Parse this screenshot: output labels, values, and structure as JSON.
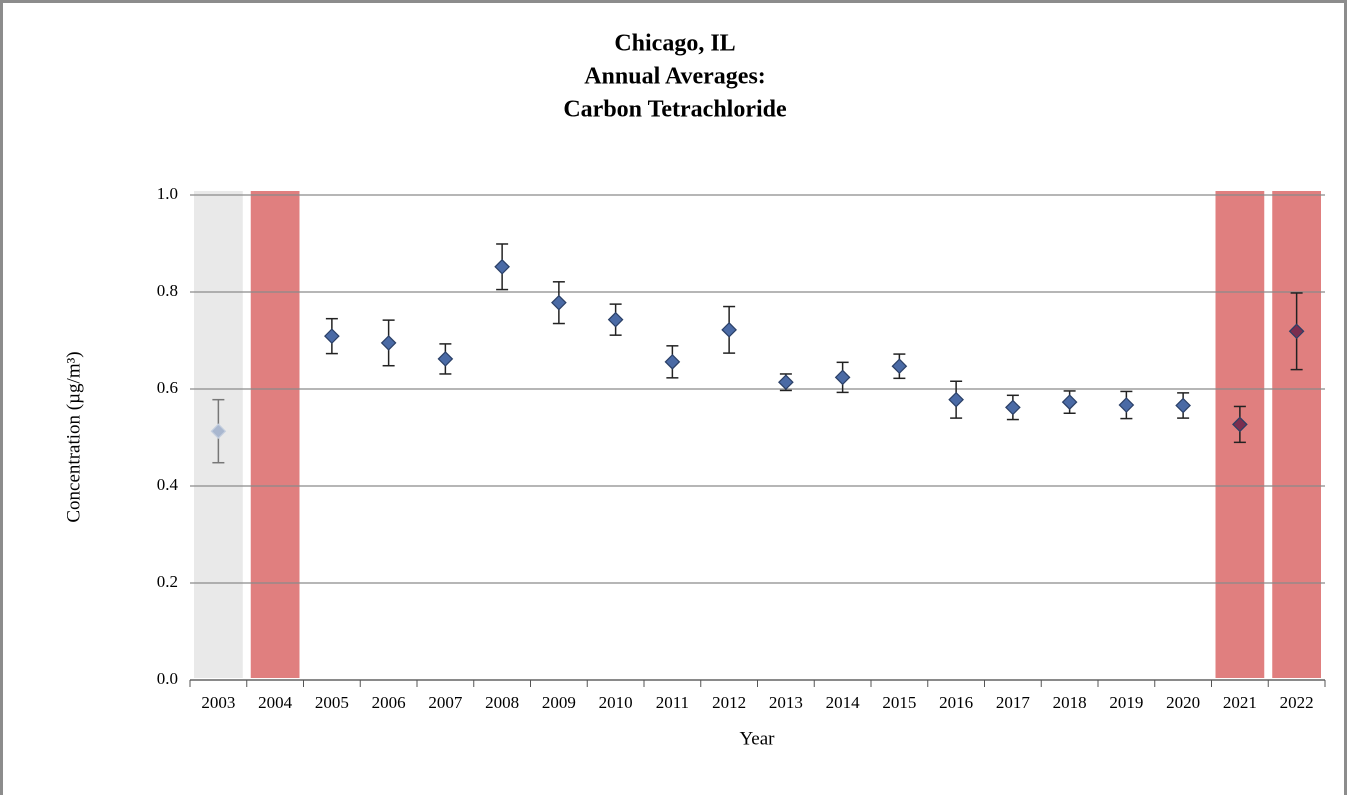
{
  "chart_data": {
    "type": "errorscatter",
    "title": "Chicago, IL",
    "subtitle": [
      "Annual Averages:",
      "Carbon Tetrachloride"
    ],
    "x_label": "Year",
    "y_label": "Concentration (µg/m³)",
    "categories": [
      "2003",
      "2004",
      "2005",
      "2006",
      "2007",
      "2008",
      "2009",
      "2010",
      "2011",
      "2012",
      "2013",
      "2014",
      "2015",
      "2016",
      "2017",
      "2018",
      "2019",
      "2020",
      "2021",
      "2022"
    ],
    "values": [
      0.513,
      null,
      0.709,
      0.695,
      0.662,
      0.852,
      0.778,
      0.743,
      0.656,
      0.722,
      0.614,
      0.624,
      0.647,
      0.578,
      0.562,
      0.573,
      0.567,
      0.566,
      0.527,
      0.719
    ],
    "errors": [
      0.065,
      null,
      0.036,
      0.047,
      0.031,
      0.047,
      0.043,
      0.032,
      0.033,
      0.048,
      0.017,
      0.031,
      0.025,
      0.038,
      0.025,
      0.023,
      0.028,
      0.026,
      0.037,
      0.079
    ],
    "point_colors": [
      "#a9b7cf",
      null,
      "#4a6aa5",
      "#4a6aa5",
      "#4a6aa5",
      "#4a6aa5",
      "#4a6aa5",
      "#4a6aa5",
      "#4a6aa5",
      "#4a6aa5",
      "#4a6aa5",
      "#4a6aa5",
      "#4a6aa5",
      "#4a6aa5",
      "#4a6aa5",
      "#4a6aa5",
      "#4a6aa5",
      "#4a6aa5",
      "#7b2d4f",
      "#7b2d4f"
    ],
    "band_colors": [
      "#e9e9e9",
      "#e07f7f",
      null,
      null,
      null,
      null,
      null,
      null,
      null,
      null,
      null,
      null,
      null,
      null,
      null,
      null,
      null,
      null,
      "#e07f7f",
      "#e07f7f"
    ],
    "ylim": [
      0,
      1
    ],
    "yticks": [
      {
        "value": 0,
        "label": "0.0"
      },
      {
        "value": 0.2,
        "label": "0.2"
      },
      {
        "value": 0.4,
        "label": "0.4"
      },
      {
        "value": 0.6,
        "label": "0.6"
      },
      {
        "value": 0.8,
        "label": "0.8"
      },
      {
        "value": 1,
        "label": "1.0"
      }
    ],
    "grid": true
  }
}
